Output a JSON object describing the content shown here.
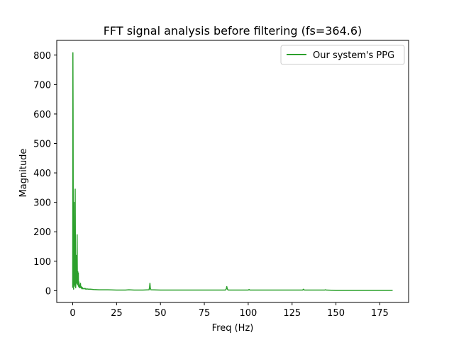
{
  "chart_data": {
    "type": "line",
    "title": "FFT signal analysis before filtering (fs=364.6)",
    "xlabel": "Freq (Hz)",
    "ylabel": "Magnitude",
    "xlim": [
      -9.1,
      191.4
    ],
    "ylim": [
      -40,
      850
    ],
    "xticks": [
      0,
      25,
      50,
      75,
      100,
      125,
      150,
      175
    ],
    "yticks": [
      0,
      100,
      200,
      300,
      400,
      500,
      600,
      700,
      800
    ],
    "grid": false,
    "legend": {
      "placement": "top-right"
    },
    "series": [
      {
        "name": "Our system's PPG",
        "color": "#2ca02c",
        "x": [
          0,
          0.1,
          0.2,
          0.3,
          0.4,
          0.5,
          0.6,
          0.7,
          0.8,
          0.9,
          1.0,
          1.1,
          1.2,
          1.3,
          1.4,
          1.5,
          1.6,
          1.7,
          1.8,
          1.9,
          2.0,
          2.1,
          2.2,
          2.3,
          2.4,
          2.5,
          2.6,
          2.7,
          2.8,
          2.9,
          3.0,
          3.1,
          3.2,
          3.3,
          3.4,
          3.5,
          3.6,
          3.7,
          3.8,
          3.9,
          4.0,
          4.2,
          4.4,
          4.6,
          4.8,
          5.0,
          5.2,
          5.4,
          5.6,
          5.8,
          6.0,
          6.5,
          7.0,
          7.5,
          8.0,
          9.0,
          10.0,
          12.0,
          15.0,
          20.0,
          25.0,
          30.0,
          32.0,
          35.0,
          40.0,
          43.5,
          43.8,
          44.0,
          44.2,
          44.5,
          50.0,
          60.0,
          70.0,
          80.0,
          87.0,
          87.5,
          87.8,
          88.0,
          88.3,
          88.6,
          89.0,
          95.0,
          100.0,
          100.5,
          101.0,
          110.0,
          120.0,
          131.0,
          131.5,
          132.0,
          140.0,
          143.5,
          144.0,
          144.5,
          150.0,
          160.0,
          170.0,
          175.0,
          182.3
        ],
        "y": [
          10,
          808,
          620,
          280,
          60,
          5,
          40,
          300,
          120,
          20,
          85,
          150,
          60,
          15,
          345,
          200,
          40,
          10,
          60,
          120,
          30,
          50,
          80,
          25,
          55,
          190,
          90,
          20,
          40,
          65,
          20,
          35,
          60,
          15,
          25,
          30,
          12,
          20,
          18,
          10,
          14,
          12,
          25,
          10,
          14,
          8,
          12,
          6,
          10,
          8,
          7,
          6,
          8,
          5,
          6,
          5,
          5,
          4,
          3,
          3,
          2,
          2,
          3,
          2,
          2,
          3,
          12,
          25,
          10,
          3,
          2,
          2,
          2,
          2,
          2,
          6,
          14,
          8,
          4,
          2,
          2,
          2,
          2,
          4,
          2,
          2,
          2,
          2,
          5,
          2,
          2,
          2,
          3,
          2,
          1,
          1,
          1,
          1,
          1
        ]
      }
    ]
  }
}
